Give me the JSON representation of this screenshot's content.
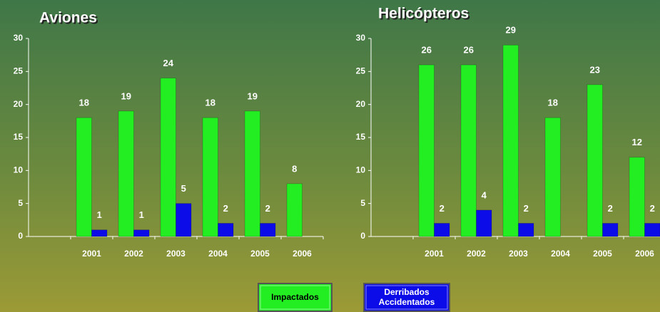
{
  "chart_data": [
    {
      "type": "bar",
      "title": "Aviones",
      "categories": [
        null,
        "2001",
        "2002",
        "2003",
        "2004",
        "2005",
        "2006"
      ],
      "series": [
        {
          "name": "Impactados",
          "color": "#22ee22",
          "values": [
            null,
            18,
            19,
            24,
            18,
            19,
            8
          ]
        },
        {
          "name": "Derribados Accidentados",
          "color": "#0c0ce8",
          "values": [
            null,
            1,
            1,
            5,
            2,
            2,
            null
          ]
        }
      ],
      "ylim": [
        0,
        30
      ],
      "yticks": [
        0,
        5,
        10,
        15,
        20,
        25,
        30
      ],
      "legend": "bottom"
    },
    {
      "type": "bar",
      "title": "Helicópteros",
      "categories": [
        null,
        "2001",
        "2002",
        "2003",
        "2004",
        "2005",
        "2006"
      ],
      "series": [
        {
          "name": "Impactados",
          "color": "#22ee22",
          "values": [
            null,
            26,
            26,
            29,
            18,
            23,
            12
          ]
        },
        {
          "name": "Derribados Accidentados",
          "color": "#0c0ce8",
          "values": [
            null,
            2,
            4,
            2,
            null,
            2,
            2
          ]
        }
      ],
      "ylim": [
        0,
        30
      ],
      "yticks": [
        0,
        5,
        10,
        15,
        20,
        25,
        30
      ],
      "legend": "bottom"
    }
  ]
}
